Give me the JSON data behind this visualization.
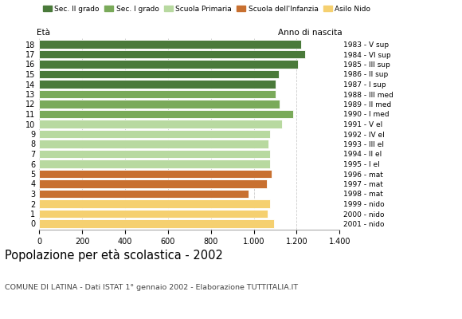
{
  "ages": [
    18,
    17,
    16,
    15,
    14,
    13,
    12,
    11,
    10,
    9,
    8,
    7,
    6,
    5,
    4,
    3,
    2,
    1,
    0
  ],
  "values": [
    1220,
    1240,
    1205,
    1115,
    1100,
    1100,
    1120,
    1185,
    1130,
    1075,
    1070,
    1075,
    1075,
    1085,
    1060,
    975,
    1075,
    1065,
    1095
  ],
  "right_labels": [
    "1983 - V sup",
    "1984 - VI sup",
    "1985 - III sup",
    "1986 - II sup",
    "1987 - I sup",
    "1988 - III med",
    "1989 - II med",
    "1990 - I med",
    "1991 - V el",
    "1992 - IV el",
    "1993 - III el",
    "1994 - II el",
    "1995 - I el",
    "1996 - mat",
    "1997 - mat",
    "1998 - mat",
    "1999 - nido",
    "2000 - nido",
    "2001 - nido"
  ],
  "colors": [
    "#4a7a3a",
    "#4a7a3a",
    "#4a7a3a",
    "#4a7a3a",
    "#4a7a3a",
    "#7aaa5a",
    "#7aaa5a",
    "#7aaa5a",
    "#b8d9a0",
    "#b8d9a0",
    "#b8d9a0",
    "#b8d9a0",
    "#b8d9a0",
    "#c87030",
    "#c87030",
    "#c87030",
    "#f5d070",
    "#f5d070",
    "#f5d070"
  ],
  "legend_labels": [
    "Sec. II grado",
    "Sec. I grado",
    "Scuola Primaria",
    "Scuola dell'Infanzia",
    "Asilo Nido"
  ],
  "legend_colors": [
    "#4a7a3a",
    "#7aaa5a",
    "#b8d9a0",
    "#c87030",
    "#f5d070"
  ],
  "title": "Popolazione per età scolastica - 2002",
  "subtitle": "COMUNE DI LATINA - Dati ISTAT 1° gennaio 2002 - Elaborazione TUTTITALIA.IT",
  "label_left": "Età",
  "label_right": "Anno di nascita",
  "xticks": [
    0,
    200,
    400,
    600,
    800,
    1000,
    1200,
    1400
  ],
  "xlim": [
    0,
    1400
  ],
  "background_color": "#ffffff",
  "grid_color": "#cccccc"
}
